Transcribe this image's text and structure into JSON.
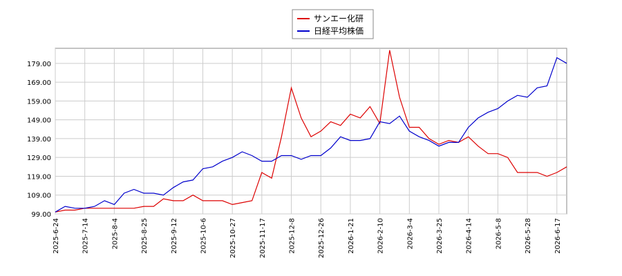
{
  "chart_data": {
    "type": "line",
    "x": [
      "2025-6-24",
      null,
      null,
      "2025-7-14",
      null,
      null,
      "2025-8-4",
      null,
      null,
      "2025-8-25",
      null,
      null,
      "2025-9-12",
      null,
      null,
      "2025-10-6",
      null,
      null,
      "2025-10-27",
      null,
      null,
      "2025-11-17",
      null,
      null,
      "2025-12-8",
      null,
      null,
      "2025-12-26",
      null,
      null,
      "2026-1-21",
      null,
      null,
      "2026-2-10",
      null,
      null,
      "2026-3-4",
      null,
      null,
      "2026-3-25",
      null,
      null,
      "2026-4-14",
      null,
      null,
      "2026-5-8",
      null,
      null,
      "2026-5-28",
      null,
      null,
      "2026-6-17",
      null
    ],
    "series": [
      {
        "name": "サンエー化研",
        "color": "#dd0000",
        "values": [
          100,
          101,
          101,
          102,
          102,
          102,
          102,
          102,
          102,
          103,
          103,
          107,
          106,
          106,
          109,
          106,
          106,
          106,
          104,
          105,
          106,
          121,
          118,
          140,
          166,
          150,
          140,
          143,
          148,
          146,
          152,
          150,
          156,
          147,
          186,
          161,
          145,
          145,
          139,
          136,
          138,
          137,
          140,
          135,
          131,
          131,
          129,
          121,
          121,
          121,
          119,
          121,
          124
        ]
      },
      {
        "name": "日経平均株価",
        "color": "#0000cc",
        "values": [
          100,
          103,
          102,
          102,
          103,
          106,
          104,
          110,
          112,
          110,
          110,
          109,
          113,
          116,
          117,
          123,
          124,
          127,
          129,
          132,
          130,
          127,
          127,
          130,
          130,
          128,
          130,
          130,
          134,
          140,
          138,
          138,
          139,
          148,
          147,
          151,
          143,
          140,
          138,
          135,
          137,
          137,
          145,
          150,
          153,
          155,
          159,
          162,
          161,
          166,
          167,
          182,
          179
        ]
      }
    ],
    "ylim": [
      99,
      187
    ],
    "yticks": [
      {
        "value": 99,
        "label": "99.00"
      },
      {
        "value": 109,
        "label": "109.00"
      },
      {
        "value": 119,
        "label": "119.00"
      },
      {
        "value": 129,
        "label": "129.00"
      },
      {
        "value": 139,
        "label": "139.00"
      },
      {
        "value": 149,
        "label": "149.00"
      },
      {
        "value": 159,
        "label": "159.00"
      },
      {
        "value": 169,
        "label": "169.00"
      },
      {
        "value": 179,
        "label": "179.00"
      }
    ],
    "grid": true
  }
}
